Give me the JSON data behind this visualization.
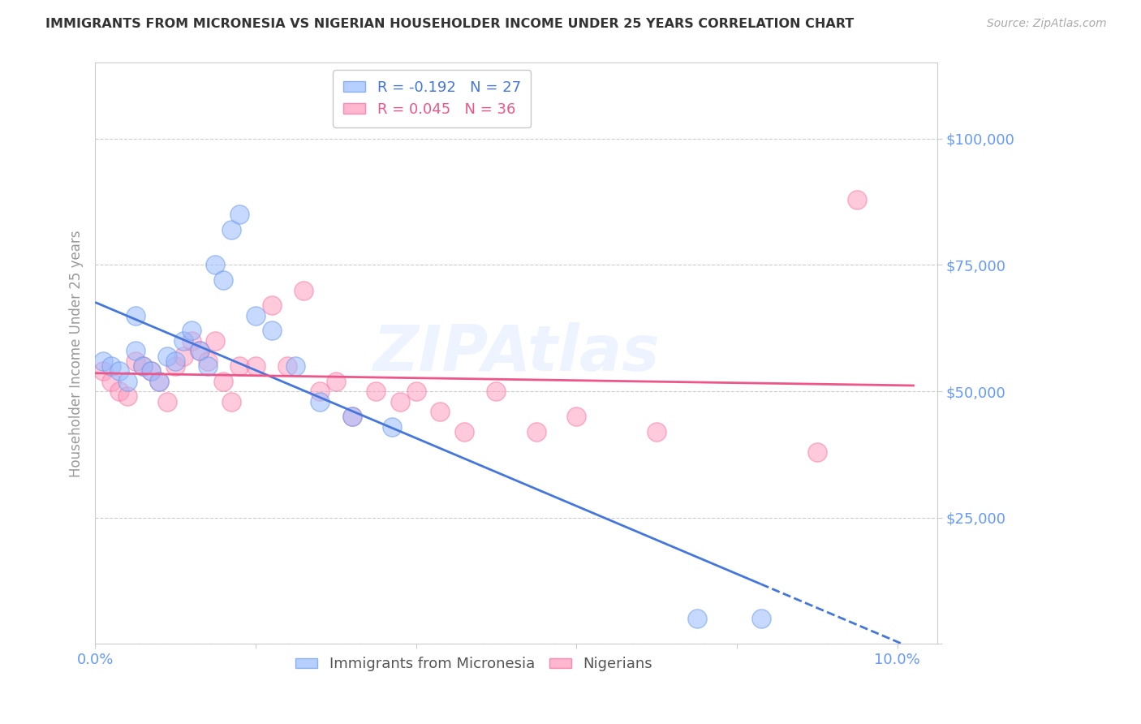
{
  "title": "IMMIGRANTS FROM MICRONESIA VS NIGERIAN HOUSEHOLDER INCOME UNDER 25 YEARS CORRELATION CHART",
  "source": "Source: ZipAtlas.com",
  "ylabel": "Householder Income Under 25 years",
  "xlim": [
    0.0,
    0.105
  ],
  "ylim": [
    0,
    115000
  ],
  "yticks": [
    0,
    25000,
    50000,
    75000,
    100000
  ],
  "ytick_labels": [
    "",
    "$25,000",
    "$50,000",
    "$75,000",
    "$100,000"
  ],
  "xticks": [
    0.0,
    0.02,
    0.04,
    0.06,
    0.08,
    0.1
  ],
  "xtick_labels": [
    "0.0%",
    "",
    "",
    "",
    "",
    "10.0%"
  ],
  "legend_bottom": "Immigrants from Micronesia",
  "legend_bottom2": "Nigerians",
  "blue_color": "#99BBFF",
  "blue_edge_color": "#6699EE",
  "pink_color": "#FF99BB",
  "pink_edge_color": "#FF6699",
  "blue_line_color": "#4477DD",
  "pink_line_color": "#EE5588",
  "watermark": "ZIPAtlas",
  "background_color": "#FFFFFF",
  "grid_color": "#CCCCCC",
  "title_color": "#333333",
  "label_color": "#6699FF",
  "R_micronesia": -0.192,
  "N_micronesia": 27,
  "R_nigerian": 0.045,
  "N_nigerian": 36,
  "micronesia_x": [
    0.001,
    0.002,
    0.003,
    0.004,
    0.005,
    0.005,
    0.006,
    0.007,
    0.008,
    0.009,
    0.01,
    0.011,
    0.012,
    0.013,
    0.014,
    0.015,
    0.016,
    0.017,
    0.018,
    0.02,
    0.022,
    0.025,
    0.028,
    0.032,
    0.037,
    0.075,
    0.083
  ],
  "micronesia_y": [
    56000,
    55000,
    54000,
    52000,
    65000,
    58000,
    55000,
    54000,
    52000,
    57000,
    56000,
    60000,
    62000,
    58000,
    55000,
    75000,
    72000,
    82000,
    85000,
    65000,
    62000,
    55000,
    48000,
    45000,
    43000,
    5000,
    5000
  ],
  "nigerian_x": [
    0.001,
    0.002,
    0.003,
    0.004,
    0.005,
    0.006,
    0.007,
    0.008,
    0.009,
    0.01,
    0.011,
    0.012,
    0.013,
    0.014,
    0.015,
    0.016,
    0.017,
    0.018,
    0.02,
    0.022,
    0.024,
    0.026,
    0.028,
    0.03,
    0.032,
    0.035,
    0.038,
    0.04,
    0.043,
    0.046,
    0.05,
    0.055,
    0.06,
    0.07,
    0.09,
    0.095
  ],
  "nigerian_y": [
    54000,
    52000,
    50000,
    49000,
    56000,
    55000,
    54000,
    52000,
    48000,
    55000,
    57000,
    60000,
    58000,
    56000,
    60000,
    52000,
    48000,
    55000,
    55000,
    67000,
    55000,
    70000,
    50000,
    52000,
    45000,
    50000,
    48000,
    50000,
    46000,
    42000,
    50000,
    42000,
    45000,
    42000,
    38000,
    88000
  ],
  "blue_line_x_start": 0.0,
  "blue_line_x_solid_end": 0.083,
  "blue_line_x_dash_end": 0.102,
  "pink_line_x_start": 0.0,
  "pink_line_x_end": 0.102
}
